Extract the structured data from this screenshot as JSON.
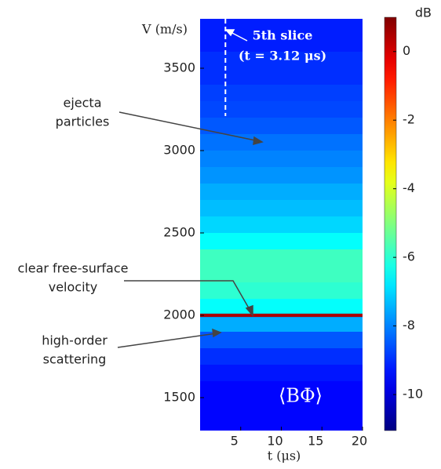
{
  "chart_data": {
    "type": "heatmap",
    "colormap": "jet",
    "x_label": "t (μs)",
    "y_label": "V (m/s)",
    "xlim": [
      0,
      20
    ],
    "xticks": [
      5,
      10,
      15,
      20
    ],
    "ylim": [
      1300,
      3800
    ],
    "yticks": [
      1500,
      2000,
      2500,
      3000,
      3500
    ],
    "y_bins": [
      1300,
      1400,
      1500,
      1600,
      1700,
      1800,
      1900,
      1990,
      2010,
      2100,
      2200,
      2300,
      2400,
      2500,
      2600,
      2700,
      2800,
      2900,
      3000,
      3100,
      3200,
      3300,
      3400,
      3500,
      3600,
      3700,
      3800
    ],
    "values": [
      -9.5,
      -9.5,
      -9.5,
      -9.3,
      -9,
      -8.5,
      -7.5,
      0.5,
      -6.5,
      -6,
      -5.8,
      -5.8,
      -6.5,
      -7,
      -7.3,
      -7.5,
      -7.8,
      -8,
      -8.2,
      -8.5,
      -8.7,
      -8.8,
      -9,
      -9,
      -9.2,
      -9.2
    ],
    "colorbar": {
      "label": "dB",
      "lim": [
        -11.05,
        1.0
      ],
      "ticks": [
        0,
        -2,
        -4,
        -6,
        -8,
        -10
      ]
    },
    "slice": {
      "x": 3.12,
      "label": "5th slice",
      "sublabel": "(t = 3.12 μs)"
    },
    "map_label": "⟨BΦ⟩",
    "annotations": [
      {
        "lines": [
          "ejecta",
          "particles"
        ]
      },
      {
        "lines": [
          "clear free-surface",
          "velocity"
        ]
      },
      {
        "lines": [
          "high-order",
          "scattering"
        ]
      }
    ]
  }
}
